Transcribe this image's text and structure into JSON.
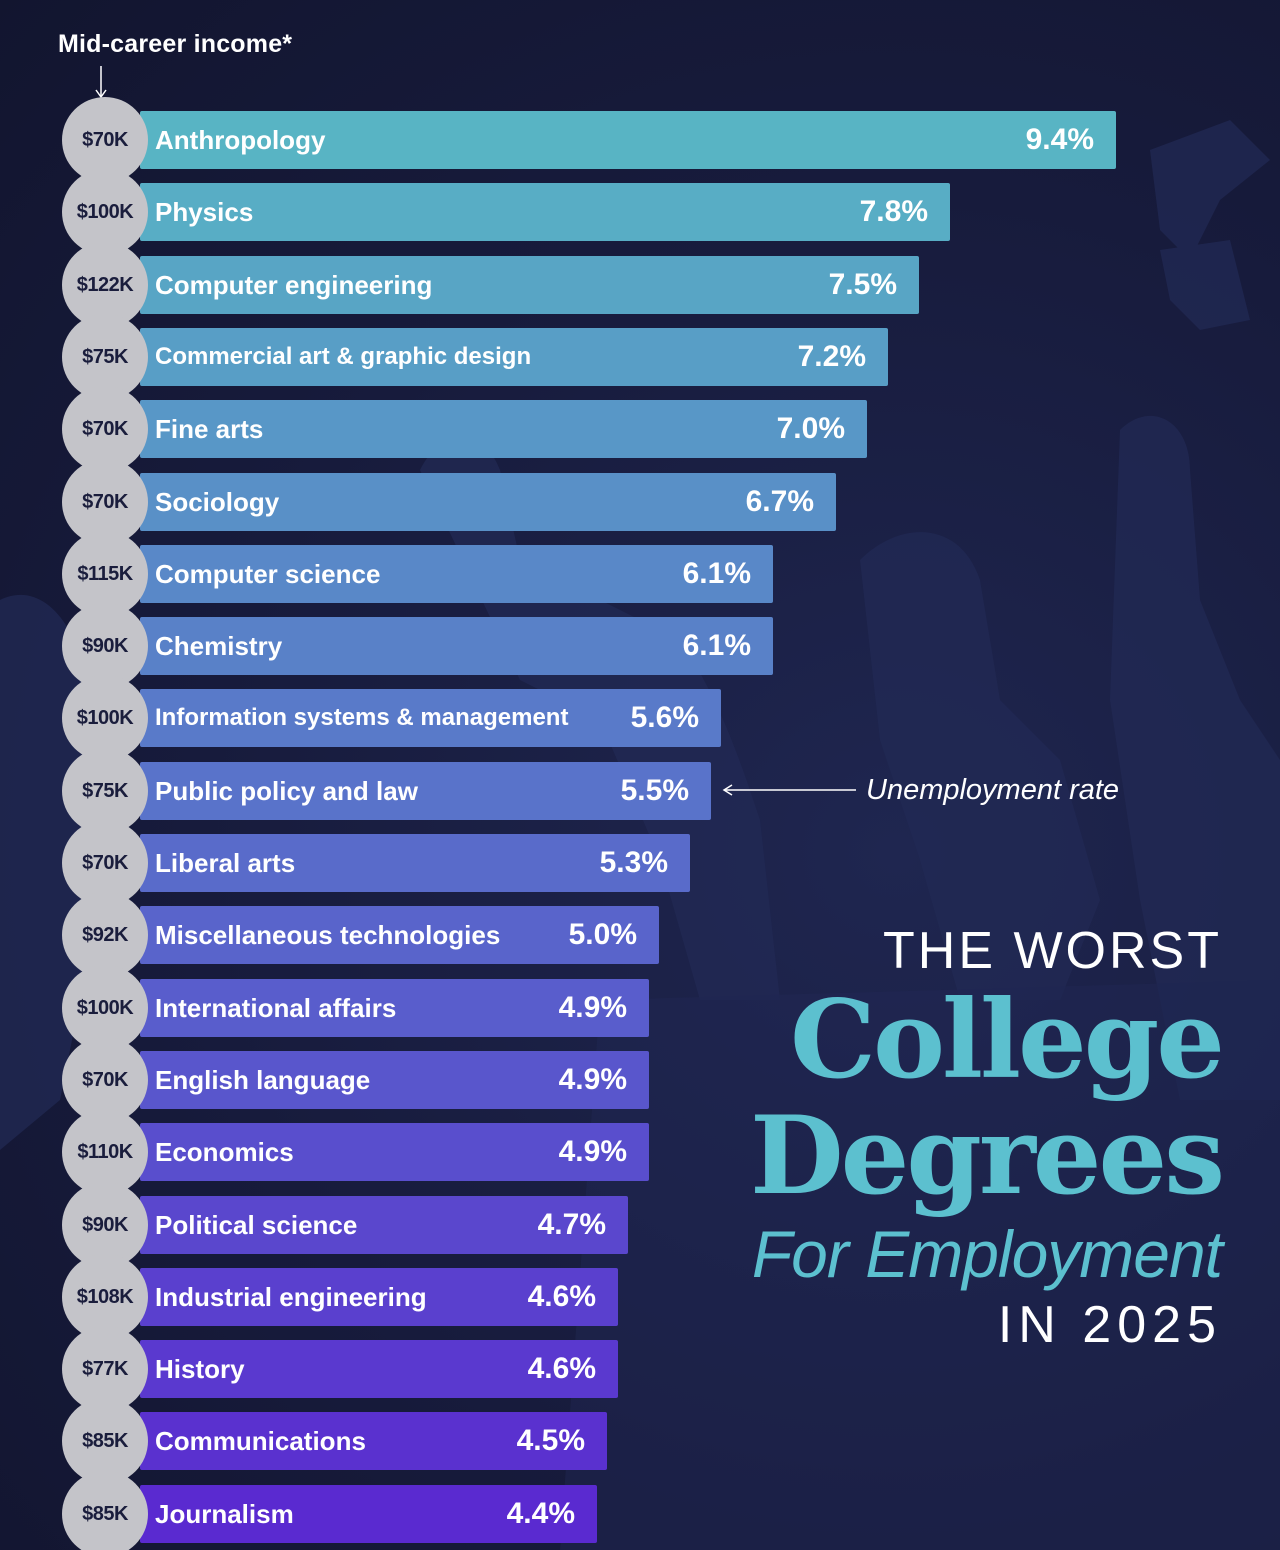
{
  "header": {
    "income_label": "Mid-career income*"
  },
  "annotation": {
    "label": "Unemployment rate"
  },
  "title": {
    "line1": "THE WORST",
    "line2": "College",
    "line3": "Degrees",
    "line4": "For Employment",
    "line5": "IN 2025"
  },
  "colors": {
    "bar_top": "#58b4c4",
    "bar_bottom": "#5a2ad0",
    "accent": "#5cc0cf",
    "income_circle": "#c4c4c9",
    "background": "#161a38"
  },
  "chart_data": {
    "type": "bar",
    "orientation": "horizontal",
    "ylabel": "Unemployment rate",
    "categories": [
      "Anthropology",
      "Physics",
      "Computer engineering",
      "Commercial art & graphic design",
      "Fine arts",
      "Sociology",
      "Computer science",
      "Chemistry",
      "Information systems & management",
      "Public policy and law",
      "Liberal arts",
      "Miscellaneous technologies",
      "International affairs",
      "English language",
      "Economics",
      "Political science",
      "Industrial engineering",
      "History",
      "Communications",
      "Journalism"
    ],
    "values": [
      9.4,
      7.8,
      7.5,
      7.2,
      7.0,
      6.7,
      6.1,
      6.1,
      5.6,
      5.5,
      5.3,
      5.0,
      4.9,
      4.9,
      4.9,
      4.7,
      4.6,
      4.6,
      4.5,
      4.4
    ],
    "value_labels": [
      "9.4%",
      "7.8%",
      "7.5%",
      "7.2%",
      "7.0%",
      "6.7%",
      "6.1%",
      "6.1%",
      "5.6%",
      "5.5%",
      "5.3%",
      "5.0%",
      "4.9%",
      "4.9%",
      "4.9%",
      "4.7%",
      "4.6%",
      "4.6%",
      "4.5%",
      "4.4%"
    ],
    "income_labels": [
      "$70K",
      "$100K",
      "$122K",
      "$75K",
      "$70K",
      "$70K",
      "$115K",
      "$90K",
      "$100K",
      "$75K",
      "$70K",
      "$92K",
      "$100K",
      "$70K",
      "$110K",
      "$90K",
      "$108K",
      "$77K",
      "$85K",
      "$85K"
    ],
    "xlim": [
      0,
      9.4
    ],
    "grid": false,
    "legend": "none"
  }
}
